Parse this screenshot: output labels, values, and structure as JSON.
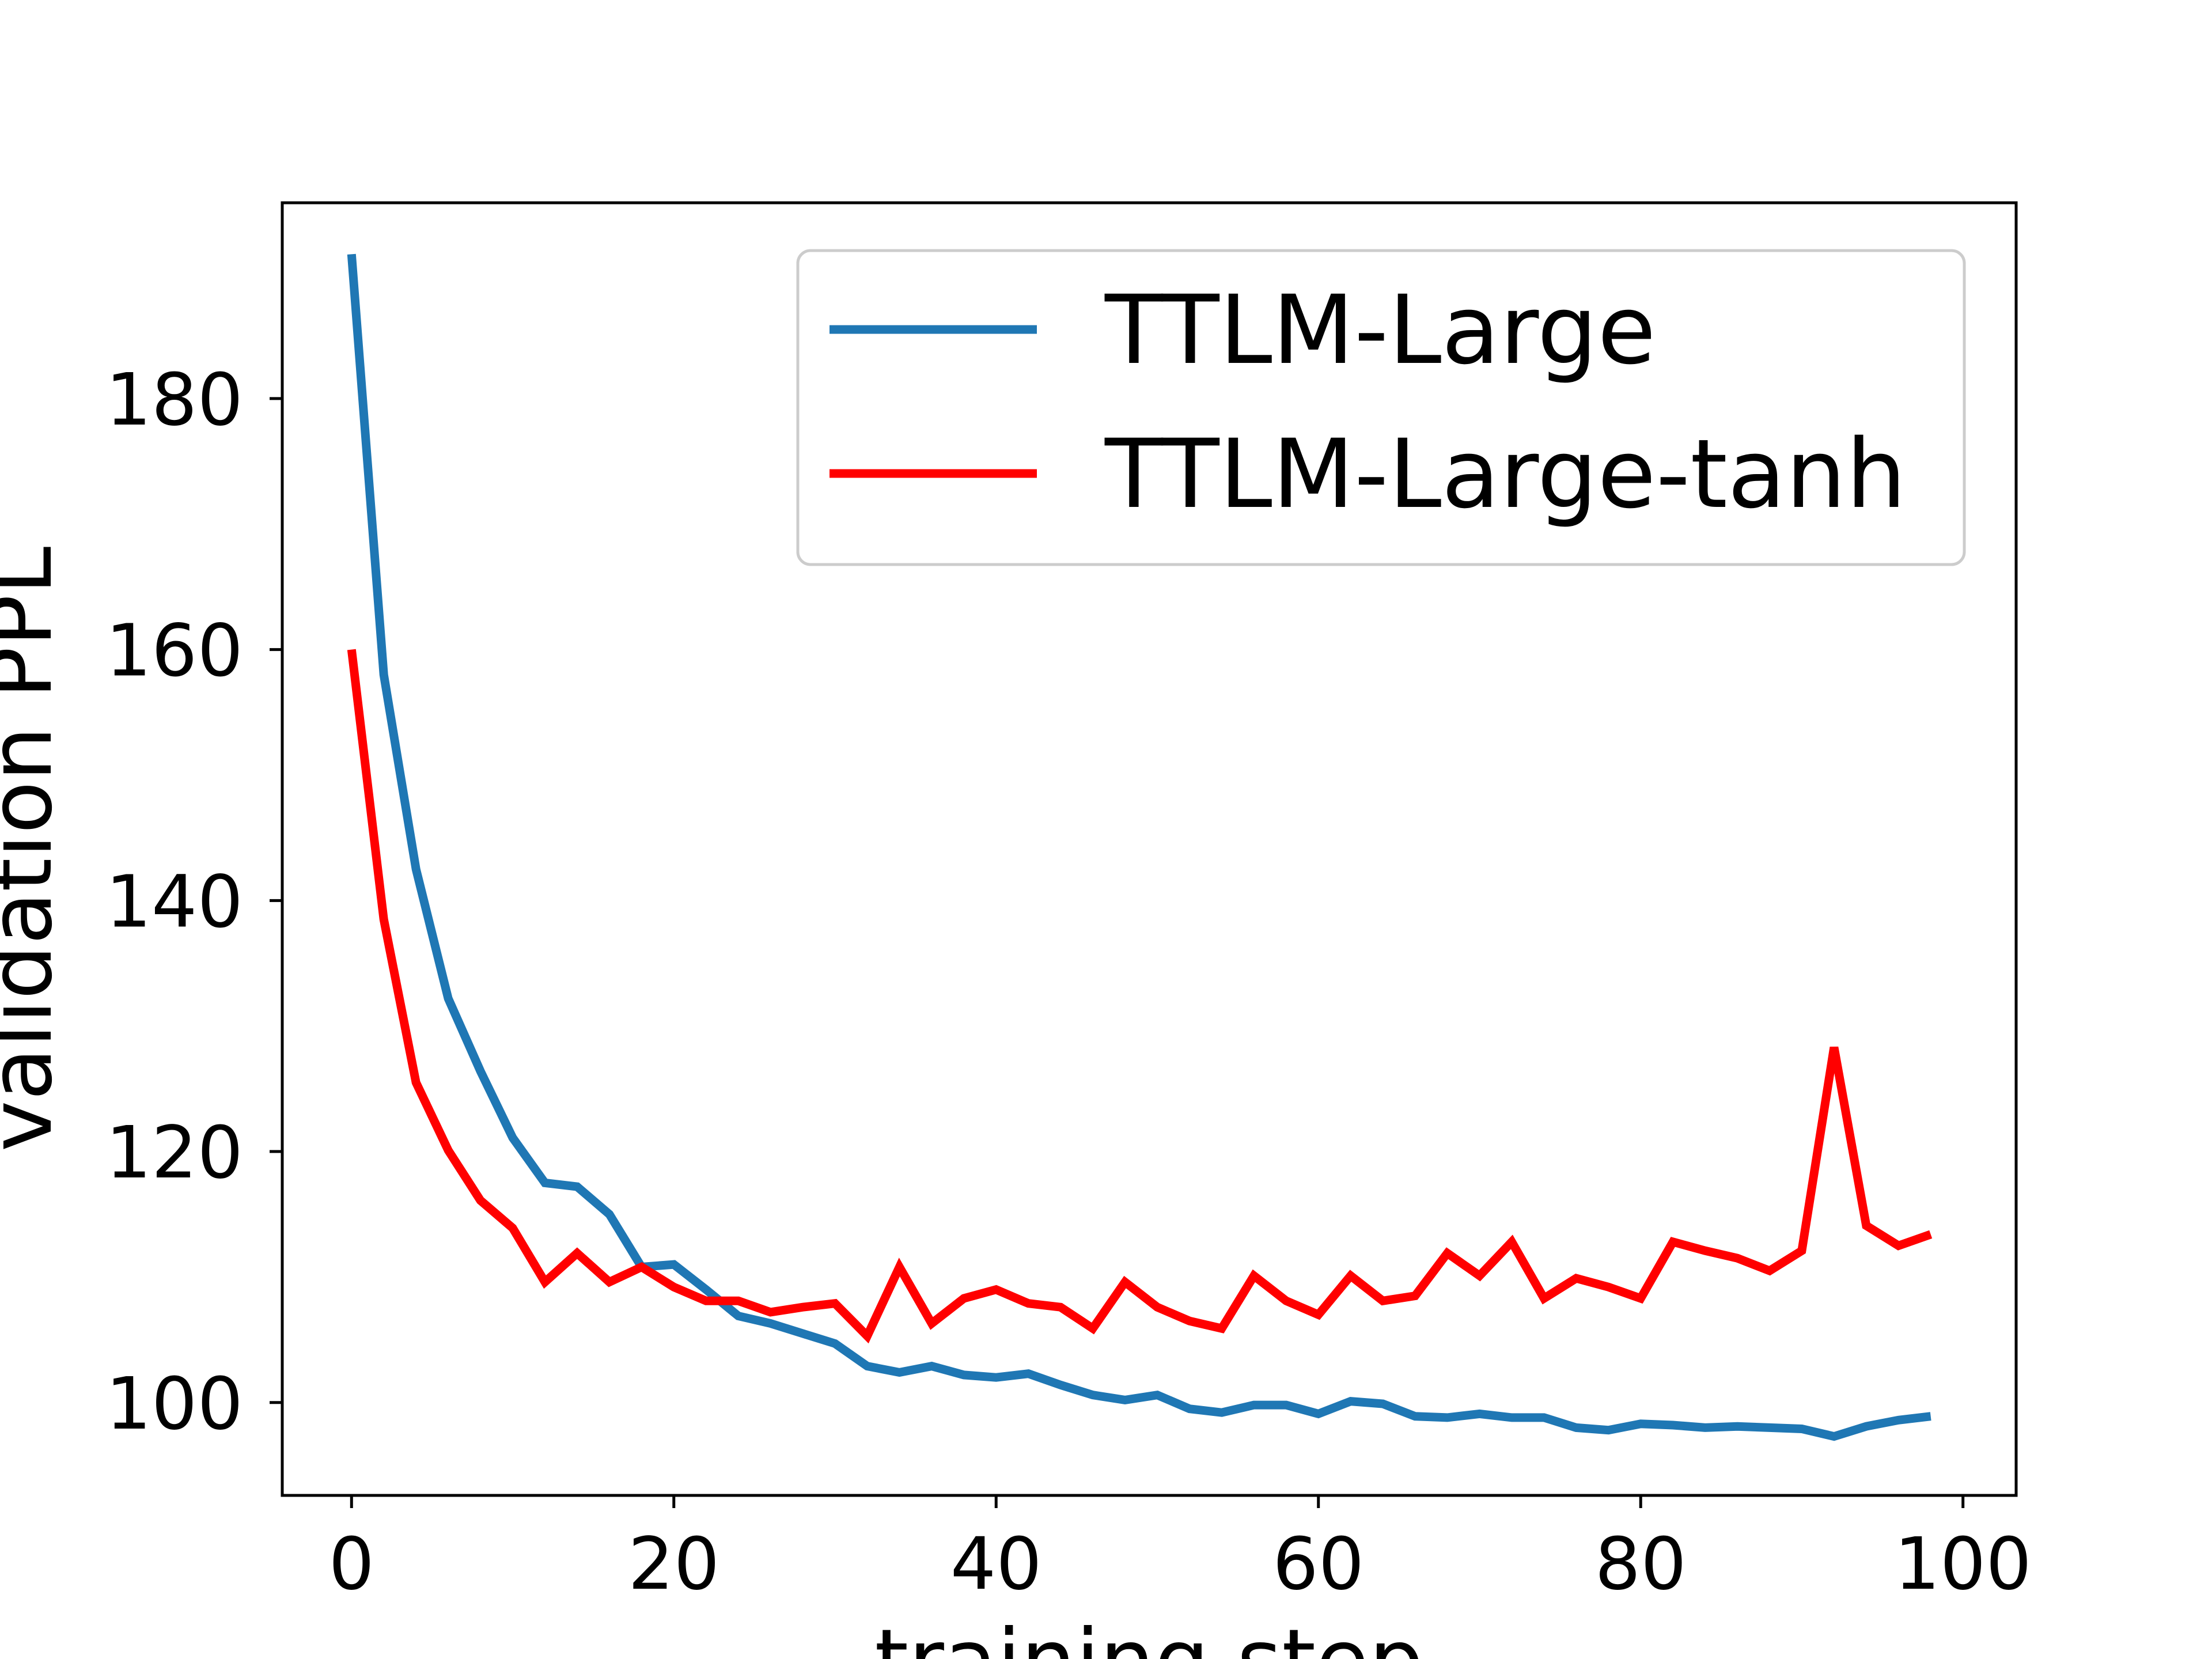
{
  "chart_data": {
    "type": "line",
    "title": "",
    "xlabel": "training step",
    "ylabel": "validation PPL",
    "xlim": [
      -4.3,
      103.3
    ],
    "ylim": [
      92.6,
      195.6
    ],
    "xticks": [
      0,
      20,
      40,
      60,
      80,
      100
    ],
    "yticks": [
      100,
      120,
      140,
      160,
      180
    ],
    "xtick_labels": [
      "0",
      "20",
      "40",
      "60",
      "80",
      "100"
    ],
    "ytick_labels": [
      "100",
      "120",
      "140",
      "160",
      "180"
    ],
    "grid": false,
    "legend_position": "upper-right",
    "x": [
      0,
      2,
      4,
      6,
      8,
      10,
      12,
      14,
      16,
      18,
      20,
      22,
      24,
      26,
      28,
      30,
      32,
      34,
      36,
      38,
      40,
      42,
      44,
      46,
      48,
      50,
      52,
      54,
      56,
      58,
      60,
      62,
      64,
      66,
      68,
      70,
      72,
      74,
      76,
      78,
      80,
      82,
      84,
      86,
      88,
      90,
      92,
      94,
      96,
      98
    ],
    "series": [
      {
        "name": "TTLM-Large",
        "color": "#1f77b4",
        "values": [
          191.5,
          158.0,
          142.5,
          132.2,
          126.4,
          121.1,
          117.5,
          117.2,
          115.0,
          110.8,
          111.0,
          109.0,
          106.9,
          106.3,
          105.5,
          104.7,
          102.9,
          102.4,
          102.9,
          102.2,
          102.0,
          102.3,
          101.4,
          100.6,
          100.2,
          100.6,
          99.5,
          99.2,
          99.8,
          99.8,
          99.1,
          100.1,
          99.9,
          98.9,
          98.8,
          99.1,
          98.8,
          98.8,
          98.0,
          97.8,
          98.3,
          98.2,
          98.0,
          98.1,
          98.0,
          97.9,
          97.3,
          98.1,
          98.6,
          98.9
        ]
      },
      {
        "name": "TTLM-Large-tanh",
        "color": "#ff0000",
        "values": [
          160.0,
          138.5,
          125.5,
          120.1,
          116.1,
          113.9,
          109.6,
          111.9,
          109.6,
          110.8,
          109.2,
          108.1,
          108.1,
          107.2,
          107.6,
          107.9,
          105.3,
          110.8,
          106.3,
          108.3,
          109.0,
          107.9,
          107.6,
          105.9,
          109.6,
          107.6,
          106.5,
          105.9,
          110.1,
          108.1,
          107.0,
          110.1,
          108.1,
          108.5,
          111.9,
          110.1,
          112.8,
          108.3,
          109.9,
          109.2,
          108.3,
          112.8,
          112.1,
          111.5,
          110.5,
          112.1,
          128.3,
          114.1,
          112.5,
          113.4
        ]
      }
    ]
  }
}
